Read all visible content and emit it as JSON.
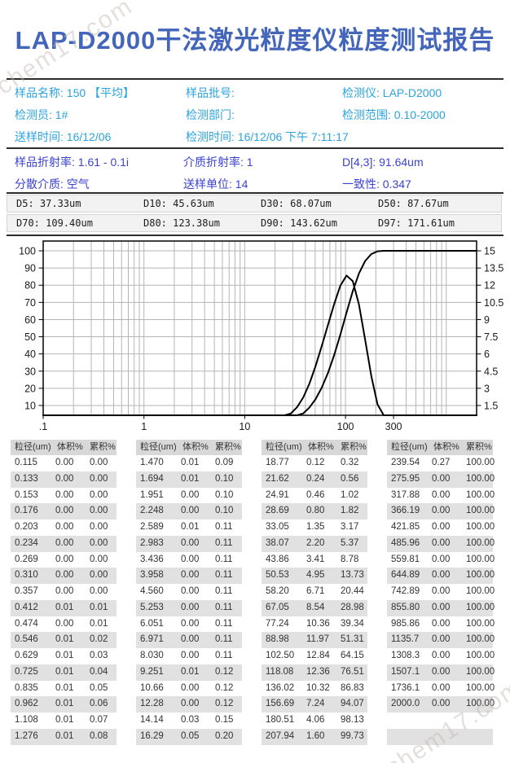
{
  "watermark": "chem17.com",
  "title": "LAP-D2000干法激光粒度仪粒度测试报告",
  "info1": [
    {
      "label": "样品名称:",
      "value": "150 【平均】"
    },
    {
      "label": "样品批号:",
      "value": ""
    },
    {
      "label": "检测仪:",
      "value": "LAP-D2000"
    },
    {
      "label": "检测员:",
      "value": "1#"
    },
    {
      "label": "检测部门:",
      "value": ""
    },
    {
      "label": "检测范围:",
      "value": "0.10-2000"
    },
    {
      "label": "送样时间:",
      "value": "16/12/06"
    },
    {
      "label": "检测时间:",
      "value": "16/12/06 下午 7:11:17"
    }
  ],
  "info2": [
    {
      "label": "样品折射率:",
      "value": "1.61 - 0.1i"
    },
    {
      "label": "介质折射率:",
      "value": "1"
    },
    {
      "label": "D[4,3]:",
      "value": "91.64um"
    },
    {
      "label": "分散介质:",
      "value": "空气"
    },
    {
      "label": "送样单位:",
      "value": "14"
    },
    {
      "label": "一致性:",
      "value": "0.347"
    }
  ],
  "d_values": [
    {
      "label": "D5:",
      "value": "37.33um"
    },
    {
      "label": "D10:",
      "value": "45.63um"
    },
    {
      "label": "D30:",
      "value": "68.07um"
    },
    {
      "label": "D50:",
      "value": "87.67um"
    },
    {
      "label": "D70:",
      "value": "109.40um"
    },
    {
      "label": "D80:",
      "value": "123.38um"
    },
    {
      "label": "D90:",
      "value": "143.62um"
    },
    {
      "label": "D97:",
      "value": "171.61um"
    }
  ],
  "chart_data": {
    "type": "line",
    "title": "",
    "x_scale": "log",
    "x_range": [
      0.1,
      2000
    ],
    "y_left_range": [
      0,
      100
    ],
    "y_right_range": [
      0,
      15
    ],
    "grid": true,
    "x_tick_labels": [
      ".1",
      "1",
      "10",
      "100",
      "300"
    ],
    "x_tick_values": [
      0.1,
      1,
      10,
      100,
      300
    ],
    "y_left_tick_labels": [
      "100",
      "90",
      "80",
      "70",
      "60",
      "50",
      "40",
      "30",
      "20",
      "10"
    ],
    "y_right_tick_labels": [
      "15",
      "13.5",
      "12",
      "10.5",
      "9",
      "7.5",
      "6",
      "4.5",
      "3",
      "1.5"
    ],
    "x": [
      0.115,
      0.133,
      0.153,
      0.176,
      0.203,
      0.234,
      0.269,
      0.31,
      0.357,
      0.412,
      0.474,
      0.546,
      0.629,
      0.725,
      0.835,
      0.962,
      1.108,
      1.276,
      1.47,
      1.694,
      1.951,
      2.248,
      2.589,
      2.983,
      3.436,
      3.958,
      4.56,
      5.253,
      6.051,
      6.971,
      8.03,
      9.251,
      10.66,
      12.28,
      14.14,
      16.29,
      18.77,
      21.62,
      24.91,
      28.69,
      33.05,
      38.07,
      43.86,
      50.53,
      58.2,
      67.05,
      77.24,
      88.98,
      102.5,
      118.08,
      136.02,
      156.69,
      180.51,
      207.94,
      239.54,
      275.95,
      317.88,
      366.19,
      421.85,
      485.96,
      559.81,
      644.89,
      742.89,
      855.8,
      985.86,
      1135.7,
      1308.3,
      1507.1,
      1736.1,
      2000.0
    ],
    "series": [
      {
        "name": "累积%",
        "axis": "left",
        "values": [
          0,
          0,
          0,
          0,
          0,
          0,
          0,
          0,
          0,
          0.01,
          0.01,
          0.02,
          0.03,
          0.04,
          0.05,
          0.06,
          0.07,
          0.08,
          0.09,
          0.1,
          0.1,
          0.1,
          0.11,
          0.11,
          0.11,
          0.11,
          0.11,
          0.11,
          0.11,
          0.11,
          0.11,
          0.12,
          0.12,
          0.12,
          0.15,
          0.2,
          0.32,
          0.56,
          1.02,
          1.82,
          3.17,
          5.37,
          8.78,
          13.73,
          20.44,
          28.98,
          39.34,
          51.31,
          64.15,
          76.51,
          86.83,
          94.07,
          98.13,
          99.73,
          100,
          100,
          100,
          100,
          100,
          100,
          100,
          100,
          100,
          100,
          100,
          100,
          100,
          100,
          100,
          100
        ]
      },
      {
        "name": "体积%",
        "axis": "right",
        "values": [
          0,
          0,
          0,
          0,
          0,
          0,
          0,
          0,
          0,
          0.01,
          0,
          0.01,
          0.01,
          0.01,
          0.01,
          0.01,
          0.01,
          0.01,
          0.01,
          0.01,
          0,
          0,
          0.01,
          0,
          0,
          0,
          0,
          0,
          0,
          0,
          0,
          0.01,
          0,
          0,
          0.03,
          0.05,
          0.12,
          0.24,
          0.46,
          0.8,
          1.35,
          2.2,
          3.41,
          4.95,
          6.71,
          8.54,
          10.36,
          11.97,
          12.84,
          12.36,
          10.32,
          7.24,
          4.06,
          1.6,
          0.27,
          0,
          0,
          0,
          0,
          0,
          0,
          0,
          0,
          0,
          0,
          0,
          0,
          0,
          0,
          0
        ]
      }
    ]
  },
  "table": {
    "headers": [
      "粒径(um)",
      "体积%",
      "累积%"
    ],
    "groups": [
      {
        "rows": [
          [
            "0.115",
            "0.00",
            "0.00"
          ],
          [
            "0.133",
            "0.00",
            "0.00"
          ],
          [
            "0.153",
            "0.00",
            "0.00"
          ],
          [
            "0.176",
            "0.00",
            "0.00"
          ],
          [
            "0.203",
            "0.00",
            "0.00"
          ],
          [
            "0.234",
            "0.00",
            "0.00"
          ],
          [
            "0.269",
            "0.00",
            "0.00"
          ],
          [
            "0.310",
            "0.00",
            "0.00"
          ],
          [
            "0.357",
            "0.00",
            "0.00"
          ],
          [
            "0.412",
            "0.01",
            "0.01"
          ],
          [
            "0.474",
            "0.00",
            "0.01"
          ],
          [
            "0.546",
            "0.01",
            "0.02"
          ],
          [
            "0.629",
            "0.01",
            "0.03"
          ],
          [
            "0.725",
            "0.01",
            "0.04"
          ],
          [
            "0.835",
            "0.01",
            "0.05"
          ],
          [
            "0.962",
            "0.01",
            "0.06"
          ],
          [
            "1.108",
            "0.01",
            "0.07"
          ],
          [
            "1.276",
            "0.01",
            "0.08"
          ]
        ]
      },
      {
        "rows": [
          [
            "1.470",
            "0.01",
            "0.09"
          ],
          [
            "1.694",
            "0.01",
            "0.10"
          ],
          [
            "1.951",
            "0.00",
            "0.10"
          ],
          [
            "2.248",
            "0.00",
            "0.10"
          ],
          [
            "2.589",
            "0.01",
            "0.11"
          ],
          [
            "2.983",
            "0.00",
            "0.11"
          ],
          [
            "3.436",
            "0.00",
            "0.11"
          ],
          [
            "3.958",
            "0.00",
            "0.11"
          ],
          [
            "4.560",
            "0.00",
            "0.11"
          ],
          [
            "5.253",
            "0.00",
            "0.11"
          ],
          [
            "6.051",
            "0.00",
            "0.11"
          ],
          [
            "6.971",
            "0.00",
            "0.11"
          ],
          [
            "8.030",
            "0.00",
            "0.11"
          ],
          [
            "9.251",
            "0.01",
            "0.12"
          ],
          [
            "10.66",
            "0.00",
            "0.12"
          ],
          [
            "12.28",
            "0.00",
            "0.12"
          ],
          [
            "14.14",
            "0.03",
            "0.15"
          ],
          [
            "16.29",
            "0.05",
            "0.20"
          ]
        ]
      },
      {
        "rows": [
          [
            "18.77",
            "0.12",
            "0.32"
          ],
          [
            "21.62",
            "0.24",
            "0.56"
          ],
          [
            "24.91",
            "0.46",
            "1.02"
          ],
          [
            "28.69",
            "0.80",
            "1.82"
          ],
          [
            "33.05",
            "1.35",
            "3.17"
          ],
          [
            "38.07",
            "2.20",
            "5.37"
          ],
          [
            "43.86",
            "3.41",
            "8.78"
          ],
          [
            "50.53",
            "4.95",
            "13.73"
          ],
          [
            "58.20",
            "6.71",
            "20.44"
          ],
          [
            "67.05",
            "8.54",
            "28.98"
          ],
          [
            "77.24",
            "10.36",
            "39.34"
          ],
          [
            "88.98",
            "11.97",
            "51.31"
          ],
          [
            "102.50",
            "12.84",
            "64.15"
          ],
          [
            "118.08",
            "12.36",
            "76.51"
          ],
          [
            "136.02",
            "10.32",
            "86.83"
          ],
          [
            "156.69",
            "7.24",
            "94.07"
          ],
          [
            "180.51",
            "4.06",
            "98.13"
          ],
          [
            "207.94",
            "1.60",
            "99.73"
          ]
        ]
      },
      {
        "rows": [
          [
            "239.54",
            "0.27",
            "100.00"
          ],
          [
            "275.95",
            "0.00",
            "100.00"
          ],
          [
            "317.88",
            "0.00",
            "100.00"
          ],
          [
            "366.19",
            "0.00",
            "100.00"
          ],
          [
            "421.85",
            "0.00",
            "100.00"
          ],
          [
            "485.96",
            "0.00",
            "100.00"
          ],
          [
            "559.81",
            "0.00",
            "100.00"
          ],
          [
            "644.89",
            "0.00",
            "100.00"
          ],
          [
            "742.89",
            "0.00",
            "100.00"
          ],
          [
            "855.80",
            "0.00",
            "100.00"
          ],
          [
            "985.86",
            "0.00",
            "100.00"
          ],
          [
            "1135.7",
            "0.00",
            "100.00"
          ],
          [
            "1308.3",
            "0.00",
            "100.00"
          ],
          [
            "1507.1",
            "0.00",
            "100.00"
          ],
          [
            "1736.1",
            "0.00",
            "100.00"
          ],
          [
            "2000.0",
            "0.00",
            "100.00"
          ],
          [
            "",
            "",
            ""
          ],
          [
            "",
            "",
            ""
          ]
        ]
      }
    ]
  }
}
